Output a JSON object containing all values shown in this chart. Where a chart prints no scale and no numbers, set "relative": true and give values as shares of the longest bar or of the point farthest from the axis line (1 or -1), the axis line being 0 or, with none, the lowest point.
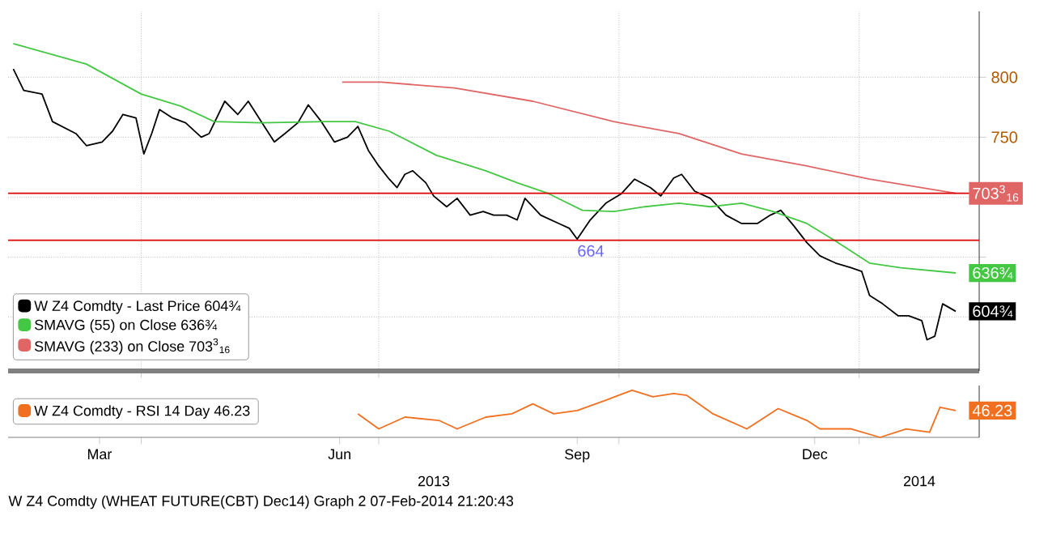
{
  "chart_data": [
    {
      "type": "line",
      "xlim": [
        "2013-02-09",
        "2014-02-16"
      ],
      "ylim": [
        555,
        855
      ],
      "xticks": [
        {
          "value": "2013-04-01",
          "label": null
        },
        {
          "value": "2013-07-01",
          "label": null
        },
        {
          "value": "2013-10-01",
          "label": null
        },
        {
          "value": "2014-01-01",
          "label": null
        }
      ],
      "yticks": [
        {
          "value": 600,
          "label": null
        },
        {
          "value": 650,
          "label": null
        },
        {
          "value": 700,
          "label": null
        },
        750,
        800
      ],
      "tick_labels": "y",
      "grid": true,
      "legend": "bottom left",
      "series": [
        {
          "name": "W Z4 Comdty - Last Price 604¾",
          "color": "#000000",
          "x": [
            "2013-02-11",
            "2013-02-15",
            "2013-02-22",
            "2013-02-26",
            "2013-03-07",
            "2013-03-11",
            "2013-03-17",
            "2013-03-21",
            "2013-03-25",
            "2013-03-30",
            "2013-04-02",
            "2013-04-05",
            "2013-04-08",
            "2013-04-13",
            "2013-04-18",
            "2013-04-24",
            "2013-04-27",
            "2013-05-03",
            "2013-05-08",
            "2013-05-12",
            "2013-05-17",
            "2013-05-22",
            "2013-05-26",
            "2013-05-31",
            "2013-06-04",
            "2013-06-09",
            "2013-06-14",
            "2013-06-19",
            "2013-06-23",
            "2013-06-27",
            "2013-07-01",
            "2013-07-05",
            "2013-07-08",
            "2013-07-11",
            "2013-07-14",
            "2013-07-19",
            "2013-07-22",
            "2013-07-27",
            "2013-07-31",
            "2013-08-05",
            "2013-08-10",
            "2013-08-14",
            "2013-08-19",
            "2013-08-23",
            "2013-08-26",
            "2013-09-01",
            "2013-09-08",
            "2013-09-12",
            "2013-09-15",
            "2013-09-20",
            "2013-09-26",
            "2013-10-02",
            "2013-10-07",
            "2013-10-13",
            "2013-10-17",
            "2013-10-22",
            "2013-10-25",
            "2013-10-30",
            "2013-11-05",
            "2013-11-11",
            "2013-11-17",
            "2013-11-23",
            "2013-11-28",
            "2013-12-02",
            "2013-12-07",
            "2013-12-12",
            "2013-12-17",
            "2013-12-23",
            "2013-12-29",
            "2014-01-02",
            "2014-01-05",
            "2014-01-10",
            "2014-01-16",
            "2014-01-20",
            "2014-01-25",
            "2014-01-27",
            "2014-01-30",
            "2014-02-02",
            "2014-02-07"
          ],
          "values": [
            807,
            789,
            786,
            763,
            753,
            743,
            746,
            755,
            769,
            766,
            736,
            753,
            773,
            766,
            762,
            750,
            753,
            780,
            769,
            780,
            763,
            746,
            753,
            762,
            777,
            763,
            746,
            750,
            759,
            739,
            726,
            715,
            708,
            719,
            722,
            712,
            701,
            692,
            699,
            685,
            688,
            685,
            685,
            681,
            699,
            685,
            678,
            674,
            665,
            681,
            695,
            703,
            715,
            708,
            701,
            716,
            719,
            705,
            699,
            685,
            678,
            678,
            685,
            689,
            676,
            662,
            651,
            645,
            641,
            638,
            618,
            611,
            601,
            601,
            597,
            581,
            584,
            611,
            604.75
          ]
        },
        {
          "name": "SMAVG (55) on Close 636¾",
          "color": "#44c844",
          "x": [
            "2013-02-11",
            "2013-03-11",
            "2013-04-01",
            "2013-04-16",
            "2013-04-29",
            "2013-05-17",
            "2013-06-11",
            "2013-06-22",
            "2013-07-05",
            "2013-07-23",
            "2013-08-11",
            "2013-08-23",
            "2013-09-04",
            "2013-09-17",
            "2013-09-29",
            "2013-10-11",
            "2013-10-24",
            "2013-11-05",
            "2013-11-17",
            "2013-11-29",
            "2013-12-12",
            "2013-12-24",
            "2014-01-05",
            "2014-01-17",
            "2014-02-07"
          ],
          "values": [
            828,
            811,
            786,
            776,
            763,
            762,
            763,
            763,
            755,
            735,
            722,
            712,
            703,
            689,
            688,
            692,
            695,
            692,
            695,
            688,
            678,
            662,
            645,
            641,
            636.75
          ]
        },
        {
          "name": "SMAVG (233) on Close 703$^{3}$$_{16}$",
          "color": "#e06666",
          "x": [
            "2013-06-17",
            "2013-07-02",
            "2013-07-30",
            "2013-08-29",
            "2013-09-29",
            "2013-10-24",
            "2013-11-17",
            "2013-12-12",
            "2014-01-05",
            "2014-02-07"
          ],
          "values": [
            796,
            796,
            791,
            780,
            763,
            753,
            736,
            726,
            715,
            703.1875
          ]
        }
      ],
      "ref_lines": [
        {
          "axis": "y",
          "value": 703.1875,
          "color": "#dd0000"
        },
        {
          "axis": "y",
          "value": 664,
          "label": "664",
          "color": "#dd0000"
        }
      ],
      "annotations": [
        {
          "text": "703$^{3}$$_{16}$",
          "x": "2014-02-07",
          "y": 703.1875
        },
        {
          "text": "636¾",
          "x": "2014-02-07",
          "y": 636.75
        },
        {
          "text": "604¾",
          "x": "2014-02-07",
          "y": 604.75
        }
      ]
    },
    {
      "type": "line",
      "relative": true,
      "xlim": [
        "2013-02-09",
        "2014-02-16"
      ],
      "xticks": [
        {
          "value": "2013-03-16",
          "label": "Mar"
        },
        {
          "value": "2013-04-01",
          "label": null
        },
        {
          "value": "2013-06-16",
          "label": "Jun"
        },
        {
          "value": "2013-07-01",
          "label": null
        },
        {
          "value": "2013-09-15",
          "label": "Sep"
        },
        {
          "value": "2013-10-01",
          "label": null
        },
        {
          "value": "2013-12-15",
          "label": "Dec"
        },
        {
          "value": "2014-01-01",
          "label": null
        }
      ],
      "tick_labels": "x",
      "legend": "left",
      "series": [
        {
          "name": "W Z4 Comdty - RSI 14 Day 46.23",
          "color": "#f07020",
          "x": [
            "2013-06-23",
            "2013-07-01",
            "2013-07-11",
            "2013-07-24",
            "2013-07-31",
            "2013-08-11",
            "2013-08-21",
            "2013-08-29",
            "2013-09-06",
            "2013-09-15",
            "2013-09-26",
            "2013-10-06",
            "2013-10-14",
            "2013-10-22",
            "2013-10-27",
            "2013-11-06",
            "2013-11-19",
            "2013-12-01",
            "2013-12-12",
            "2013-12-17",
            "2013-12-29",
            "2014-01-09",
            "2014-01-19",
            "2014-01-28",
            "2014-02-01",
            "2014-02-07"
          ],
          "values": [
            0.5,
            0.18,
            0.43,
            0.36,
            0.18,
            0.43,
            0.5,
            0.71,
            0.5,
            0.57,
            0.79,
            1,
            0.86,
            0.93,
            0.89,
            0.5,
            0.18,
            0.61,
            0.36,
            0.18,
            0.18,
            0,
            0.18,
            0.11,
            0.64,
            0.57
          ]
        }
      ],
      "annotations": [
        {
          "text": "46.23",
          "x": "2014-02-07",
          "y": 0.57
        },
        "2013",
        "2014",
        "W Z4 Comdty (WHEAT FUTURE(CBT) Dec14) Graph 2  07-Feb-2014 21:20:43"
      ]
    }
  ]
}
